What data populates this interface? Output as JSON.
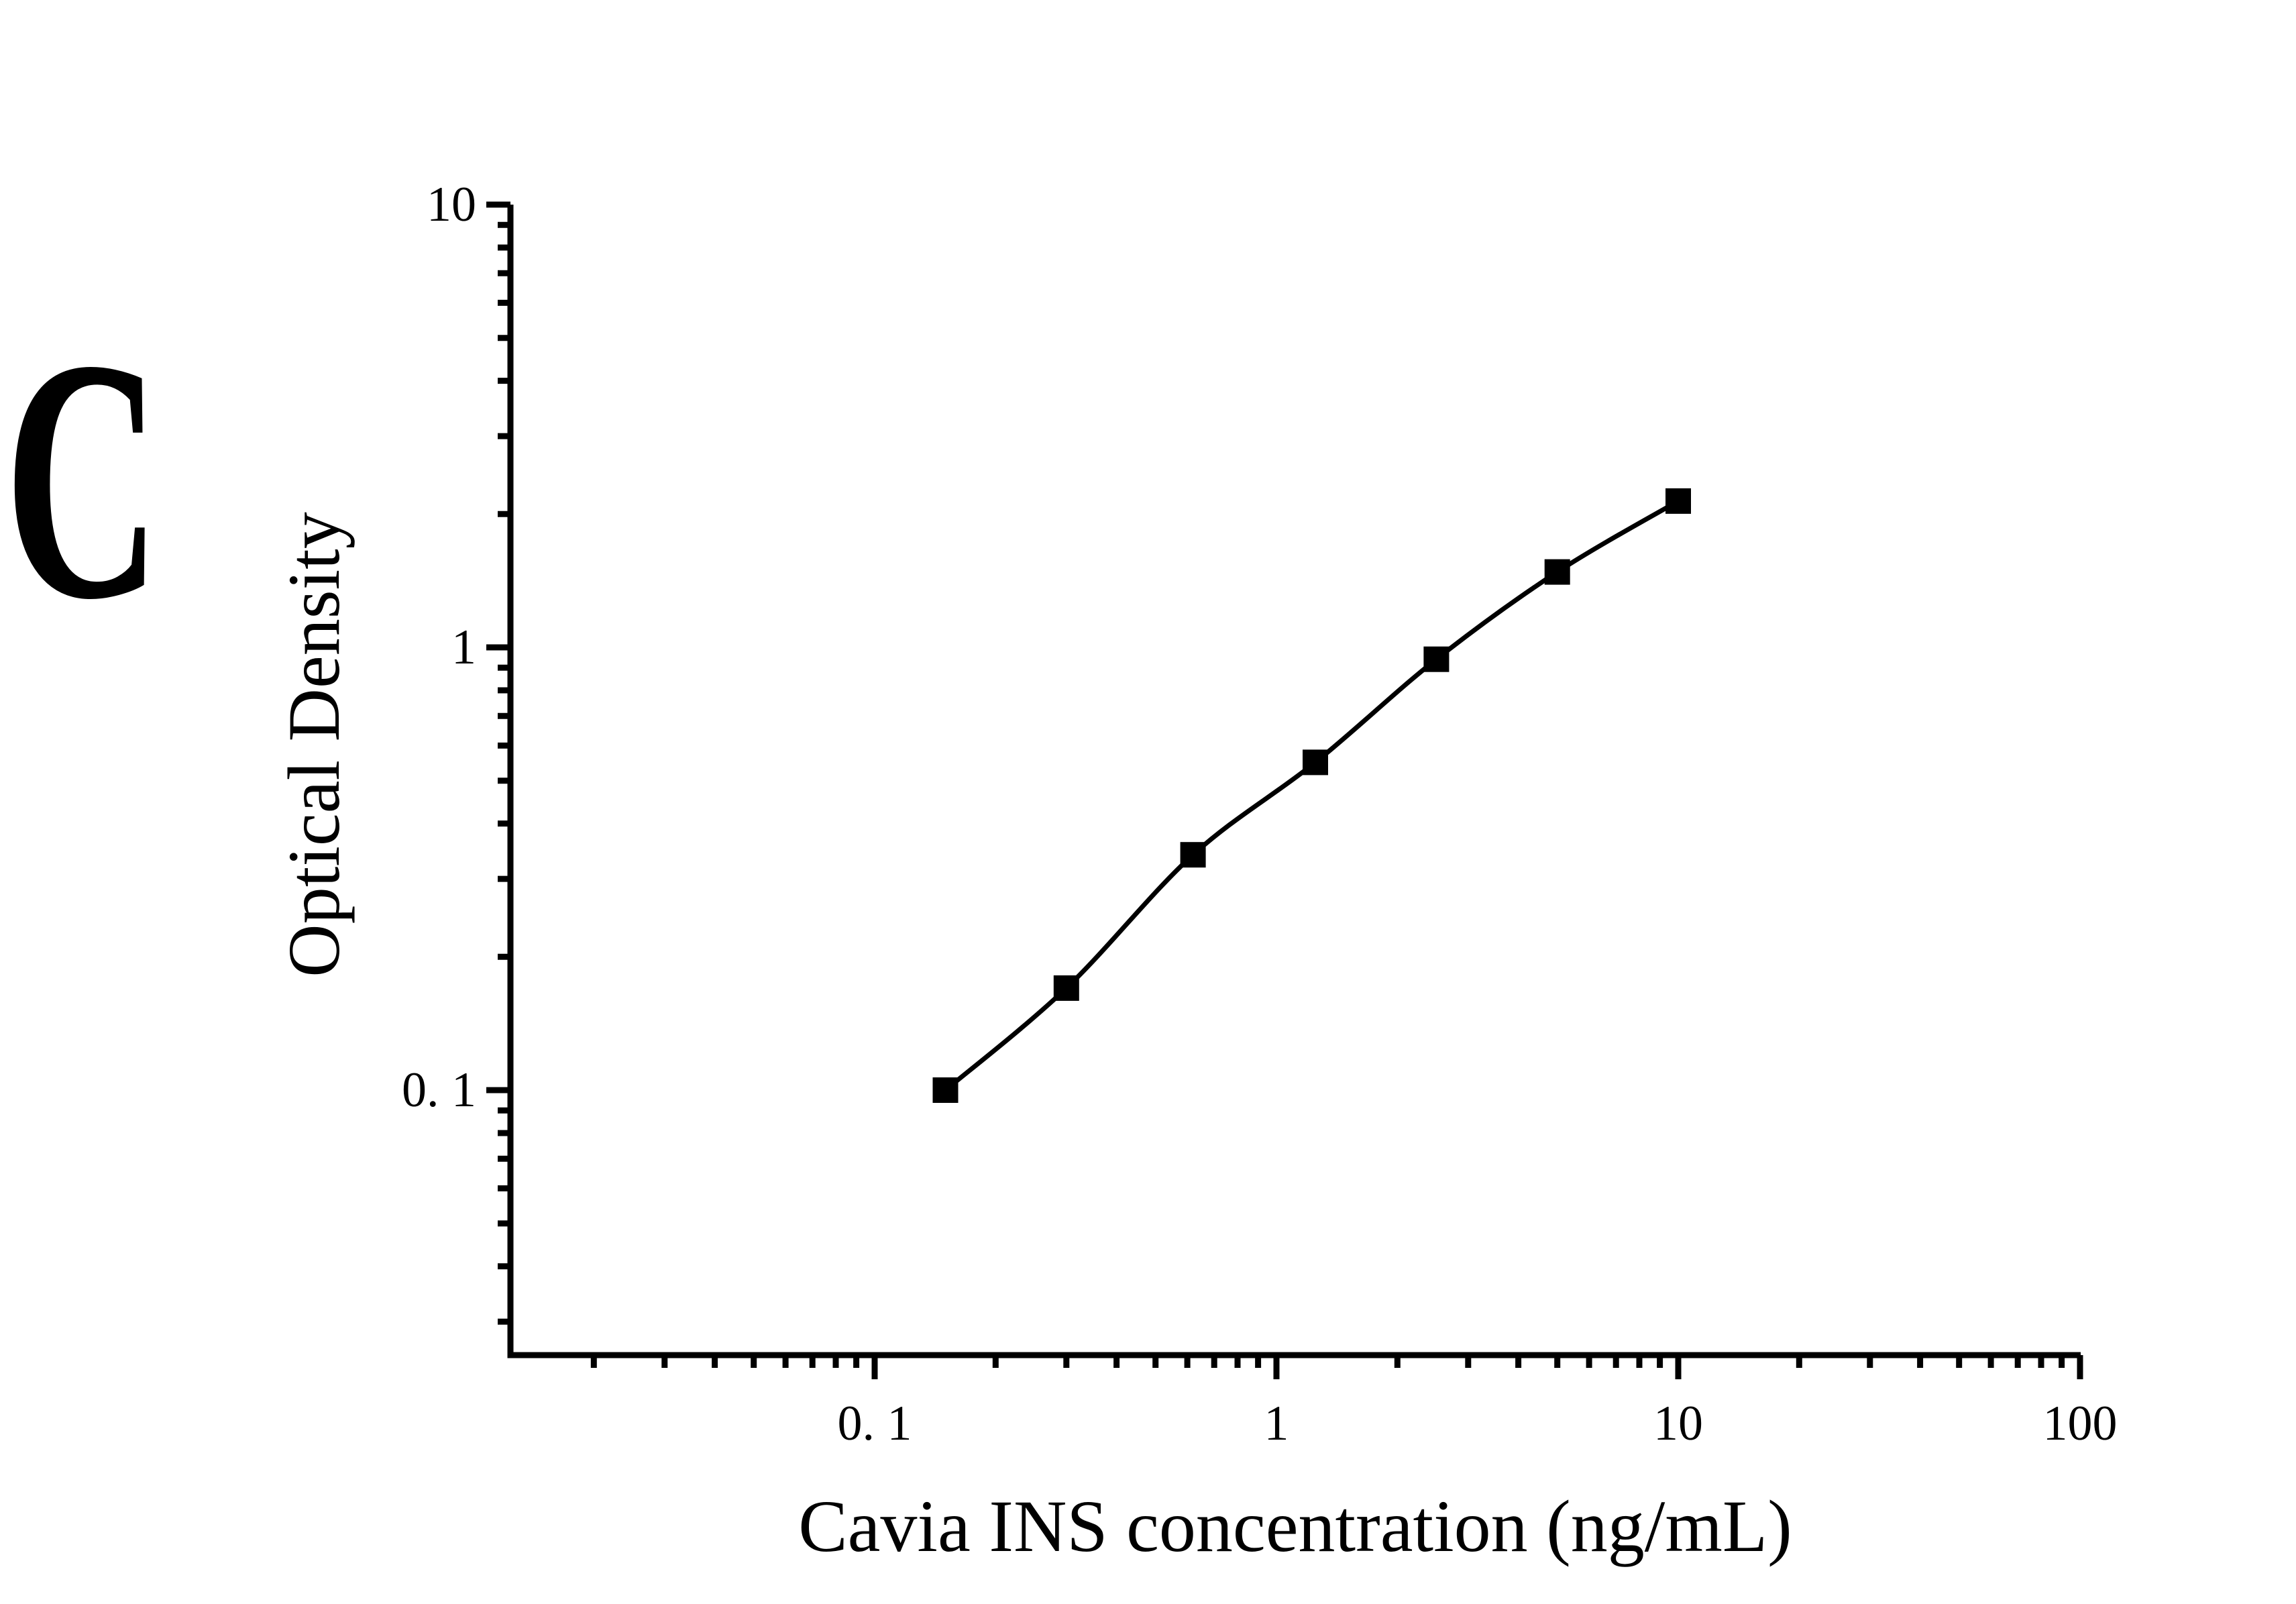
{
  "panel_label": "C",
  "chart_data": {
    "type": "line",
    "title": "",
    "xlabel": "Cavia INS concentration (ng/mL)",
    "ylabel": "Optical Density",
    "x_scale": "log",
    "y_scale": "log",
    "x": [
      0.15,
      0.3,
      0.62,
      1.25,
      2.5,
      5,
      10
    ],
    "y": [
      0.1,
      0.17,
      0.34,
      0.55,
      0.94,
      1.48,
      2.14
    ],
    "marker": "filled-square",
    "line_color": "#000000",
    "marker_color": "#000000",
    "background_color": "#ffffff",
    "xlim": [
      0.0125,
      100
    ],
    "ylim": [
      0.025,
      10
    ],
    "x_major_ticks": [
      0.1,
      1,
      10,
      100
    ],
    "x_tick_labels": [
      "0. 1",
      "1",
      "10",
      "100"
    ],
    "y_major_ticks": [
      10,
      1,
      0.1
    ],
    "y_tick_labels": [
      "10",
      "1",
      "0. 1"
    ],
    "grid": "off",
    "legend": "none"
  }
}
